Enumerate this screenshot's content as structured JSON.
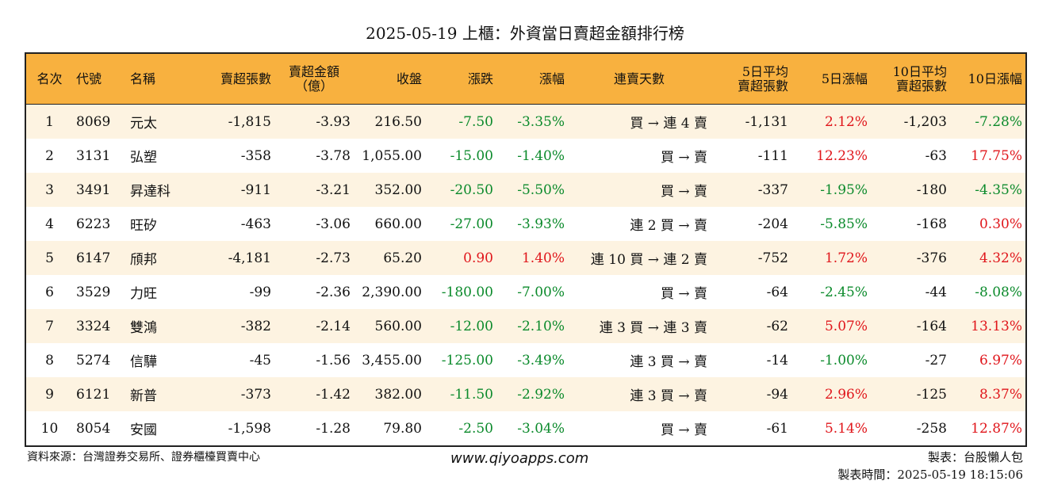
{
  "title": "2025-05-19 上櫃：外資當日賣超金額排行榜",
  "headers": {
    "rank": "名次",
    "code": "代號",
    "name": "名稱",
    "sell_lots": [
      "賣超張數"
    ],
    "sell_amount": [
      "賣超金額",
      "（億）"
    ],
    "close": "收盤",
    "change": "漲跌",
    "change_pct": "漲幅",
    "streak": "連賣天數",
    "avg5": [
      "5日平均",
      "賣超張數"
    ],
    "pct5": "5日漲幅",
    "avg10": [
      "10日平均",
      "賣超張數"
    ],
    "pct10": "10日漲幅"
  },
  "colors": {
    "header_bg": "#f8b13f",
    "stripe_bg": "#fdf3e1",
    "up": "#e0161b",
    "down": "#0b8a2b"
  },
  "rows": [
    {
      "rank": "1",
      "code": "8069",
      "name": "元太",
      "sell_lots": "-1,815",
      "sell_amount": "-3.93",
      "close": "216.50",
      "change": "-7.50",
      "change_pct": "-3.35%",
      "streak": "買 → 連 4 賣",
      "avg5": "-1,131",
      "pct5": "2.12%",
      "avg10": "-1,203",
      "pct10": "-7.28%"
    },
    {
      "rank": "2",
      "code": "3131",
      "name": "弘塑",
      "sell_lots": "-358",
      "sell_amount": "-3.78",
      "close": "1,055.00",
      "change": "-15.00",
      "change_pct": "-1.40%",
      "streak": "買 → 賣",
      "avg5": "-111",
      "pct5": "12.23%",
      "avg10": "-63",
      "pct10": "17.75%"
    },
    {
      "rank": "3",
      "code": "3491",
      "name": "昇達科",
      "sell_lots": "-911",
      "sell_amount": "-3.21",
      "close": "352.00",
      "change": "-20.50",
      "change_pct": "-5.50%",
      "streak": "買 → 賣",
      "avg5": "-337",
      "pct5": "-1.95%",
      "avg10": "-180",
      "pct10": "-4.35%"
    },
    {
      "rank": "4",
      "code": "6223",
      "name": "旺矽",
      "sell_lots": "-463",
      "sell_amount": "-3.06",
      "close": "660.00",
      "change": "-27.00",
      "change_pct": "-3.93%",
      "streak": "連 2 買 → 賣",
      "avg5": "-204",
      "pct5": "-5.85%",
      "avg10": "-168",
      "pct10": "0.30%"
    },
    {
      "rank": "5",
      "code": "6147",
      "name": "頎邦",
      "sell_lots": "-4,181",
      "sell_amount": "-2.73",
      "close": "65.20",
      "change": "0.90",
      "change_pct": "1.40%",
      "streak": "連 10 買 → 連 2 賣",
      "avg5": "-752",
      "pct5": "1.72%",
      "avg10": "-376",
      "pct10": "4.32%"
    },
    {
      "rank": "6",
      "code": "3529",
      "name": "力旺",
      "sell_lots": "-99",
      "sell_amount": "-2.36",
      "close": "2,390.00",
      "change": "-180.00",
      "change_pct": "-7.00%",
      "streak": "買 → 賣",
      "avg5": "-64",
      "pct5": "-2.45%",
      "avg10": "-44",
      "pct10": "-8.08%"
    },
    {
      "rank": "7",
      "code": "3324",
      "name": "雙鴻",
      "sell_lots": "-382",
      "sell_amount": "-2.14",
      "close": "560.00",
      "change": "-12.00",
      "change_pct": "-2.10%",
      "streak": "連 3 買 → 連 3 賣",
      "avg5": "-62",
      "pct5": "5.07%",
      "avg10": "-164",
      "pct10": "13.13%"
    },
    {
      "rank": "8",
      "code": "5274",
      "name": "信驊",
      "sell_lots": "-45",
      "sell_amount": "-1.56",
      "close": "3,455.00",
      "change": "-125.00",
      "change_pct": "-3.49%",
      "streak": "連 3 買 → 賣",
      "avg5": "-14",
      "pct5": "-1.00%",
      "avg10": "-27",
      "pct10": "6.97%"
    },
    {
      "rank": "9",
      "code": "6121",
      "name": "新普",
      "sell_lots": "-373",
      "sell_amount": "-1.42",
      "close": "382.00",
      "change": "-11.50",
      "change_pct": "-2.92%",
      "streak": "連 3 買 → 賣",
      "avg5": "-94",
      "pct5": "2.96%",
      "avg10": "-125",
      "pct10": "8.37%"
    },
    {
      "rank": "10",
      "code": "8054",
      "name": "安國",
      "sell_lots": "-1,598",
      "sell_amount": "-1.28",
      "close": "79.80",
      "change": "-2.50",
      "change_pct": "-3.04%",
      "streak": "買 → 賣",
      "avg5": "-61",
      "pct5": "5.14%",
      "avg10": "-258",
      "pct10": "12.87%"
    }
  ],
  "footer": {
    "source": "資料來源：台灣證券交易所、證券櫃檯買賣中心",
    "website": "www.qiyoapps.com",
    "maker": "製表：台股懶人包",
    "made_time": "製表時間：2025-05-19 18:15:06"
  }
}
